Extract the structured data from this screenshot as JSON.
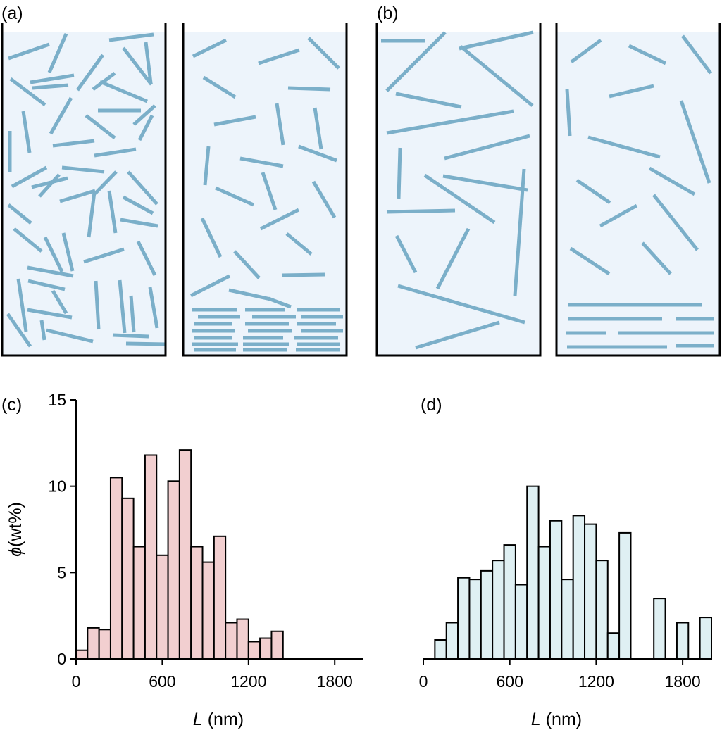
{
  "colors": {
    "rod": "#7bafc9",
    "container_fill": "#edf4fb",
    "container_stroke": "#000000",
    "bar_fill_c": "#f2cfd0",
    "bar_fill_d": "#dff0f3",
    "bar_stroke": "#000000"
  },
  "panels": {
    "a": "(a)",
    "b": "(b)",
    "c": "(c)",
    "d": "(d)"
  },
  "chart_data": [
    {
      "id": "c",
      "type": "bar",
      "title": "",
      "xlabel_italic": "L",
      "xlabel_unit": " (nm)",
      "ylabel_symbol": "ϕ",
      "ylabel_unit": "(wt%)",
      "xlim": [
        0,
        2000
      ],
      "ylim": [
        0,
        15
      ],
      "xticks": [
        0,
        600,
        1200,
        1800
      ],
      "yticks": [
        0,
        5,
        10,
        15
      ],
      "bin_width": 80,
      "bins_start": [
        0,
        80,
        160,
        240,
        320,
        400,
        480,
        560,
        640,
        720,
        800,
        880,
        960,
        1040,
        1120,
        1200,
        1280,
        1360
      ],
      "values": [
        0.5,
        1.8,
        1.7,
        10.5,
        9.3,
        6.5,
        11.8,
        6.0,
        10.3,
        12.1,
        6.5,
        5.6,
        7.1,
        2.1,
        2.3,
        1.0,
        1.2,
        1.6
      ]
    },
    {
      "id": "d",
      "type": "bar",
      "title": "",
      "xlabel_italic": "L",
      "xlabel_unit": " (nm)",
      "xlim": [
        0,
        2000
      ],
      "ylim": [
        0,
        15
      ],
      "xticks": [
        0,
        600,
        1200,
        1800
      ],
      "bin_width": 80,
      "bins_start": [
        80,
        160,
        240,
        320,
        400,
        480,
        560,
        640,
        720,
        800,
        880,
        960,
        1040,
        1120,
        1200,
        1280,
        1360,
        1600,
        1760,
        1920
      ],
      "values": [
        1.1,
        2.1,
        4.7,
        4.6,
        5.1,
        5.7,
        6.6,
        4.3,
        10.0,
        6.5,
        8.0,
        4.6,
        8.3,
        7.8,
        5.7,
        1.5,
        7.3,
        3.5,
        2.1,
        2.4
      ]
    }
  ]
}
